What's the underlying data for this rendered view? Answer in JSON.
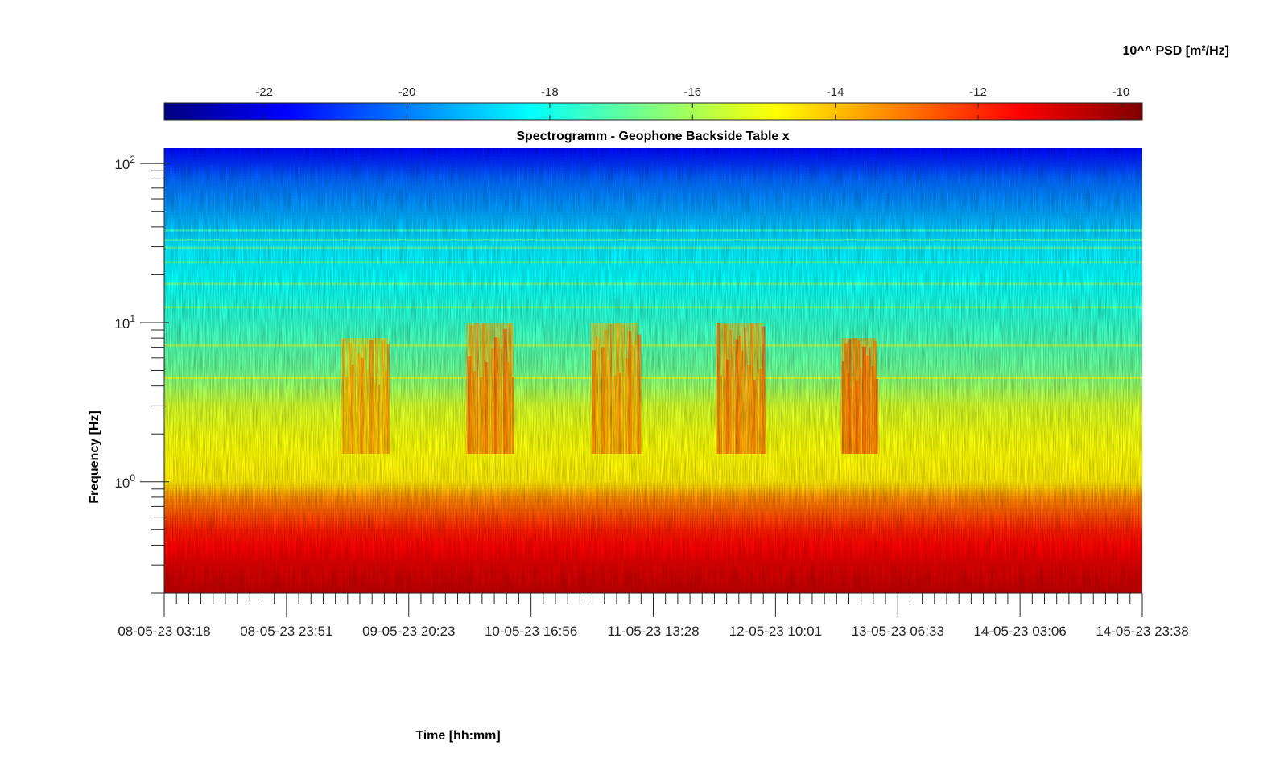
{
  "colorbar": {
    "label": "10^^ PSD [m²/Hz]",
    "ticks": [
      -22,
      -20,
      -18,
      -16,
      -14,
      -12,
      -10
    ],
    "range": [
      -23.4,
      -9.7
    ],
    "colormap": "jet",
    "colormap_stops": [
      "#00008f",
      "#0000ff",
      "#00ffff",
      "#7fff7f",
      "#ffff00",
      "#ff7f00",
      "#ff0000",
      "#7f0000"
    ],
    "orientation": "horizontal",
    "placement": "top"
  },
  "chart_data": {
    "type": "heatmap",
    "title": "Spectrogramm - Geophone Backside Table x",
    "xlabel": "Time [hh:mm]",
    "ylabel": "Frequency [Hz]",
    "yscale": "log",
    "ylim": [
      0.2,
      125
    ],
    "yticks": [
      {
        "value": 1,
        "base": "10",
        "exp": "0"
      },
      {
        "value": 10,
        "base": "10",
        "exp": "1"
      },
      {
        "value": 100,
        "base": "10",
        "exp": "2"
      }
    ],
    "xlim": [
      "08-05-23 03:18",
      "14-05-23 23:38"
    ],
    "xticks": [
      "08-05-23 03:18",
      "08-05-23 23:51",
      "09-05-23 20:23",
      "10-05-23 16:56",
      "11-05-23 13:28",
      "12-05-23 10:01",
      "13-05-23 06:33",
      "14-05-23 03:06",
      "14-05-23 23:38"
    ],
    "x_minor_ticks_per_interval": 9,
    "z_units": "log10 PSD [m²/Hz]",
    "z_levels_by_frequency": [
      {
        "freq_hz": 0.2,
        "log10_psd": -10.6
      },
      {
        "freq_hz": 0.3,
        "log10_psd": -11.0
      },
      {
        "freq_hz": 0.5,
        "log10_psd": -11.8
      },
      {
        "freq_hz": 0.8,
        "log10_psd": -13.3
      },
      {
        "freq_hz": 1.0,
        "log10_psd": -14.6
      },
      {
        "freq_hz": 2.0,
        "log10_psd": -15.0
      },
      {
        "freq_hz": 3.0,
        "log10_psd": -15.4
      },
      {
        "freq_hz": 5.0,
        "log10_psd": -16.8
      },
      {
        "freq_hz": 10.0,
        "log10_psd": -17.6
      },
      {
        "freq_hz": 20.0,
        "log10_psd": -18.3
      },
      {
        "freq_hz": 30.0,
        "log10_psd": -18.5
      },
      {
        "freq_hz": 50.0,
        "log10_psd": -19.5
      },
      {
        "freq_hz": 80.0,
        "log10_psd": -20.3
      },
      {
        "freq_hz": 100.0,
        "log10_psd": -21.0
      },
      {
        "freq_hz": 125.0,
        "log10_psd": -21.6
      }
    ],
    "activity_bursts": [
      {
        "start": "09-05-23 09:00",
        "end": "09-05-23 17:00",
        "freq_range_hz": [
          1.5,
          8
        ],
        "peak_log10_psd": -13.5
      },
      {
        "start": "10-05-23 06:00",
        "end": "10-05-23 14:00",
        "freq_range_hz": [
          1.5,
          10
        ],
        "peak_log10_psd": -13.0
      },
      {
        "start": "11-05-23 03:00",
        "end": "11-05-23 11:00",
        "freq_range_hz": [
          1.5,
          10
        ],
        "peak_log10_psd": -13.3
      },
      {
        "start": "12-05-23 00:00",
        "end": "12-05-23 08:00",
        "freq_range_hz": [
          1.5,
          10
        ],
        "peak_log10_psd": -13.0
      },
      {
        "start": "12-05-23 21:00",
        "end": "13-05-23 03:00",
        "freq_range_hz": [
          1.5,
          8
        ],
        "peak_log10_psd": -12.8
      }
    ],
    "narrowband_lines_hz": [
      4.5,
      7.2,
      12.5,
      17.5,
      24,
      29.5,
      33,
      38
    ],
    "grid": false
  }
}
